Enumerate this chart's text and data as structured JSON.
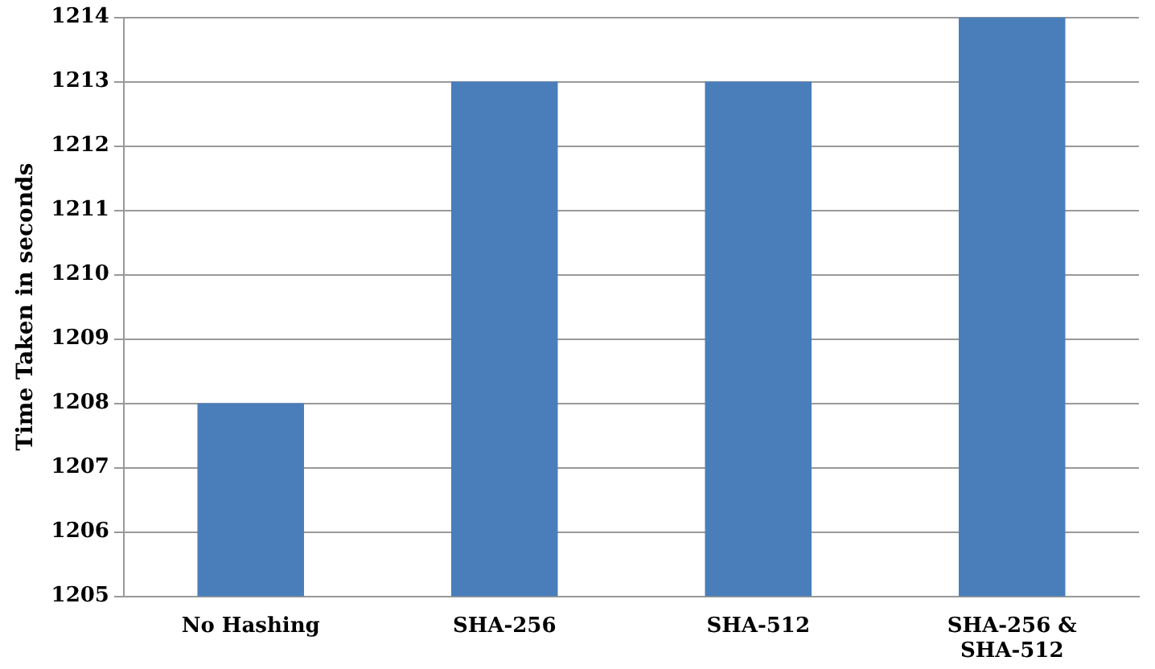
{
  "chart_data": {
    "type": "bar",
    "ylabel": "Time Taken in seconds",
    "categories": [
      "No Hashing",
      "SHA-256",
      "SHA-512",
      "SHA-256 & SHA-512"
    ],
    "values": [
      1208,
      1213,
      1213,
      1214
    ],
    "color": "#4a7ebb",
    "ylim": [
      1205,
      1214
    ],
    "yticks": [
      1205,
      1206,
      1207,
      1208,
      1209,
      1210,
      1211,
      1212,
      1213,
      1214
    ],
    "grid": "y"
  }
}
